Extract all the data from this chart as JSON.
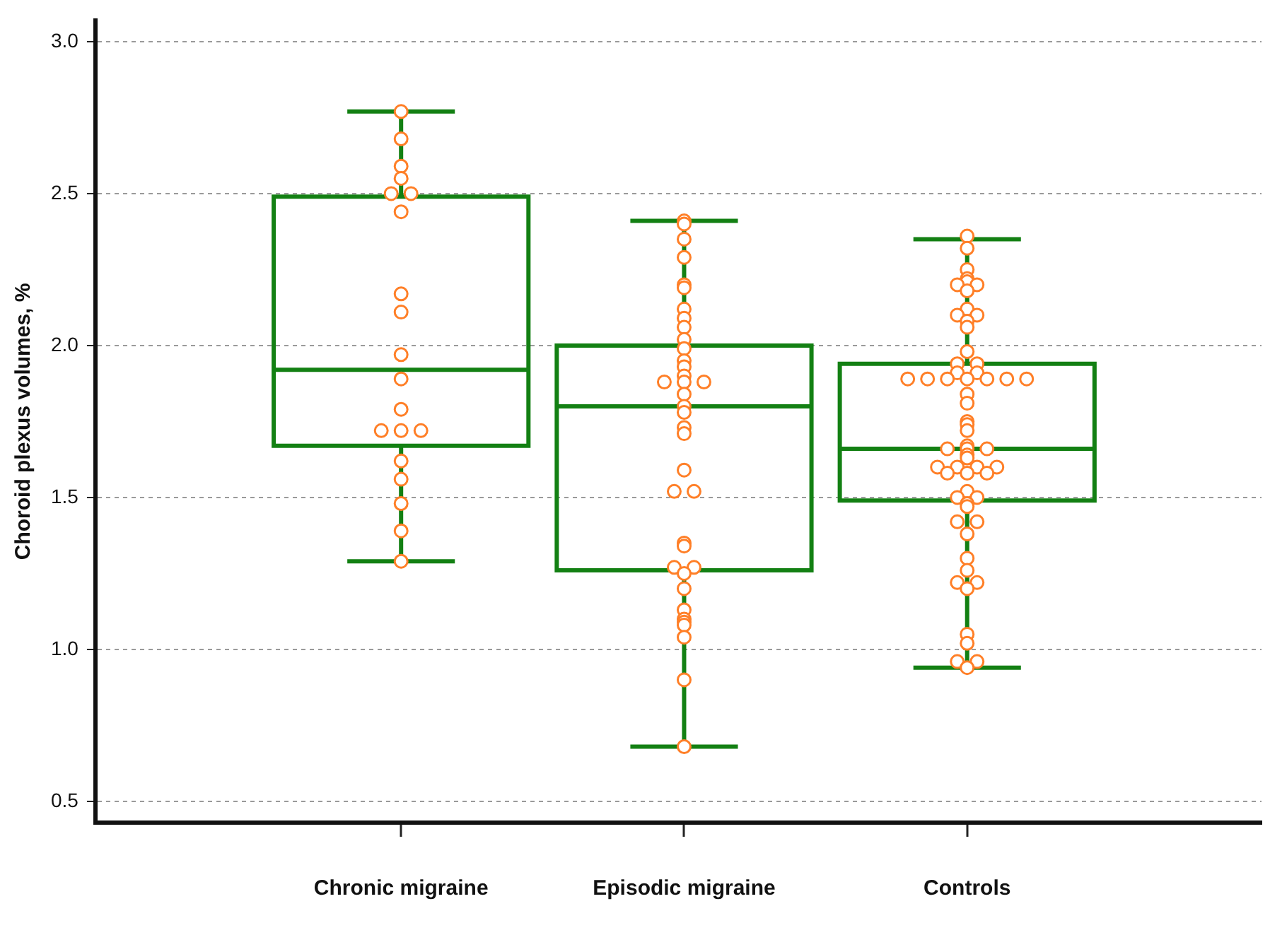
{
  "chart_data": {
    "type": "box",
    "ylabel": "Choroid plexus volumes, %",
    "categories": [
      "Chronic migraine",
      "Episodic migraine",
      "Controls"
    ],
    "ylim": [
      0.43,
      3.07
    ],
    "yticks": [
      {
        "value": 0.5,
        "label": "0.5"
      },
      {
        "value": 1.0,
        "label": "1.0"
      },
      {
        "value": 1.5,
        "label": "1.5"
      },
      {
        "value": 2.0,
        "label": "2.0"
      },
      {
        "value": 2.5,
        "label": "2.5"
      },
      {
        "value": 3.0,
        "label": "3.0"
      }
    ],
    "grid": "y",
    "series": [
      {
        "type": "box",
        "color": "#138013",
        "boxes": [
          {
            "low": 1.29,
            "q1": 1.67,
            "median": 1.92,
            "q3": 2.49,
            "high": 2.77
          },
          {
            "low": 0.68,
            "q1": 1.26,
            "median": 1.8,
            "q3": 2.0,
            "high": 2.41
          },
          {
            "low": 0.94,
            "q1": 1.49,
            "median": 1.66,
            "q3": 1.94,
            "high": 2.35
          }
        ]
      },
      {
        "type": "scatter",
        "color": "#ff7f27",
        "marker": "circle",
        "x": [
          "Chronic migraine",
          "Chronic migraine",
          "Chronic migraine",
          "Chronic migraine",
          "Chronic migraine",
          "Chronic migraine",
          "Chronic migraine",
          "Chronic migraine",
          "Chronic migraine",
          "Chronic migraine",
          "Chronic migraine",
          "Chronic migraine",
          "Chronic migraine",
          "Chronic migraine",
          "Chronic migraine",
          "Chronic migraine",
          "Chronic migraine",
          "Chronic migraine",
          "Chronic migraine",
          "Chronic migraine",
          "Episodic migraine",
          "Episodic migraine",
          "Episodic migraine",
          "Episodic migraine",
          "Episodic migraine",
          "Episodic migraine",
          "Episodic migraine",
          "Episodic migraine",
          "Episodic migraine",
          "Episodic migraine",
          "Episodic migraine",
          "Episodic migraine",
          "Episodic migraine",
          "Episodic migraine",
          "Episodic migraine",
          "Episodic migraine",
          "Episodic migraine",
          "Episodic migraine",
          "Episodic migraine",
          "Episodic migraine",
          "Episodic migraine",
          "Episodic migraine",
          "Episodic migraine",
          "Episodic migraine",
          "Episodic migraine",
          "Episodic migraine",
          "Episodic migraine",
          "Episodic migraine",
          "Episodic migraine",
          "Episodic migraine",
          "Episodic migraine",
          "Episodic migraine",
          "Episodic migraine",
          "Episodic migraine",
          "Episodic migraine",
          "Episodic migraine",
          "Episodic migraine",
          "Episodic migraine",
          "Controls",
          "Controls",
          "Controls",
          "Controls",
          "Controls",
          "Controls",
          "Controls",
          "Controls",
          "Controls",
          "Controls",
          "Controls",
          "Controls",
          "Controls",
          "Controls",
          "Controls",
          "Controls",
          "Controls",
          "Controls",
          "Controls",
          "Controls",
          "Controls",
          "Controls",
          "Controls",
          "Controls",
          "Controls",
          "Controls",
          "Controls",
          "Controls",
          "Controls",
          "Controls",
          "Controls",
          "Controls",
          "Controls",
          "Controls",
          "Controls",
          "Controls",
          "Controls",
          "Controls",
          "Controls",
          "Controls",
          "Controls",
          "Controls",
          "Controls",
          "Controls",
          "Controls",
          "Controls",
          "Controls",
          "Controls",
          "Controls",
          "Controls",
          "Controls",
          "Controls",
          "Controls",
          "Controls",
          "Controls",
          "Controls",
          "Controls",
          "Controls",
          "Controls",
          "Controls",
          "Controls"
        ],
        "values": [
          2.77,
          2.68,
          2.59,
          2.55,
          2.5,
          2.5,
          2.44,
          2.17,
          2.11,
          1.97,
          1.89,
          1.79,
          1.72,
          1.72,
          1.72,
          1.62,
          1.56,
          1.48,
          1.39,
          1.29,
          2.41,
          2.4,
          2.35,
          2.29,
          2.2,
          2.19,
          2.12,
          2.09,
          2.06,
          2.02,
          1.99,
          1.95,
          1.93,
          1.9,
          1.88,
          1.88,
          1.88,
          1.84,
          1.8,
          1.78,
          1.73,
          1.71,
          1.59,
          1.52,
          1.52,
          1.35,
          1.34,
          1.27,
          1.27,
          1.25,
          1.2,
          1.13,
          1.1,
          1.09,
          1.08,
          1.04,
          0.9,
          0.68,
          2.36,
          2.32,
          2.25,
          2.22,
          2.21,
          2.2,
          2.2,
          2.18,
          2.12,
          2.1,
          2.1,
          2.08,
          2.06,
          1.98,
          1.94,
          1.94,
          1.91,
          1.91,
          1.89,
          1.89,
          1.89,
          1.89,
          1.89,
          1.89,
          1.89,
          1.84,
          1.81,
          1.75,
          1.74,
          1.72,
          1.67,
          1.66,
          1.66,
          1.66,
          1.64,
          1.63,
          1.6,
          1.6,
          1.6,
          1.6,
          1.58,
          1.58,
          1.58,
          1.52,
          1.5,
          1.5,
          1.48,
          1.47,
          1.42,
          1.42,
          1.38,
          1.3,
          1.26,
          1.22,
          1.22,
          1.2,
          1.05,
          1.02,
          0.96,
          0.96,
          0.94
        ]
      }
    ]
  }
}
